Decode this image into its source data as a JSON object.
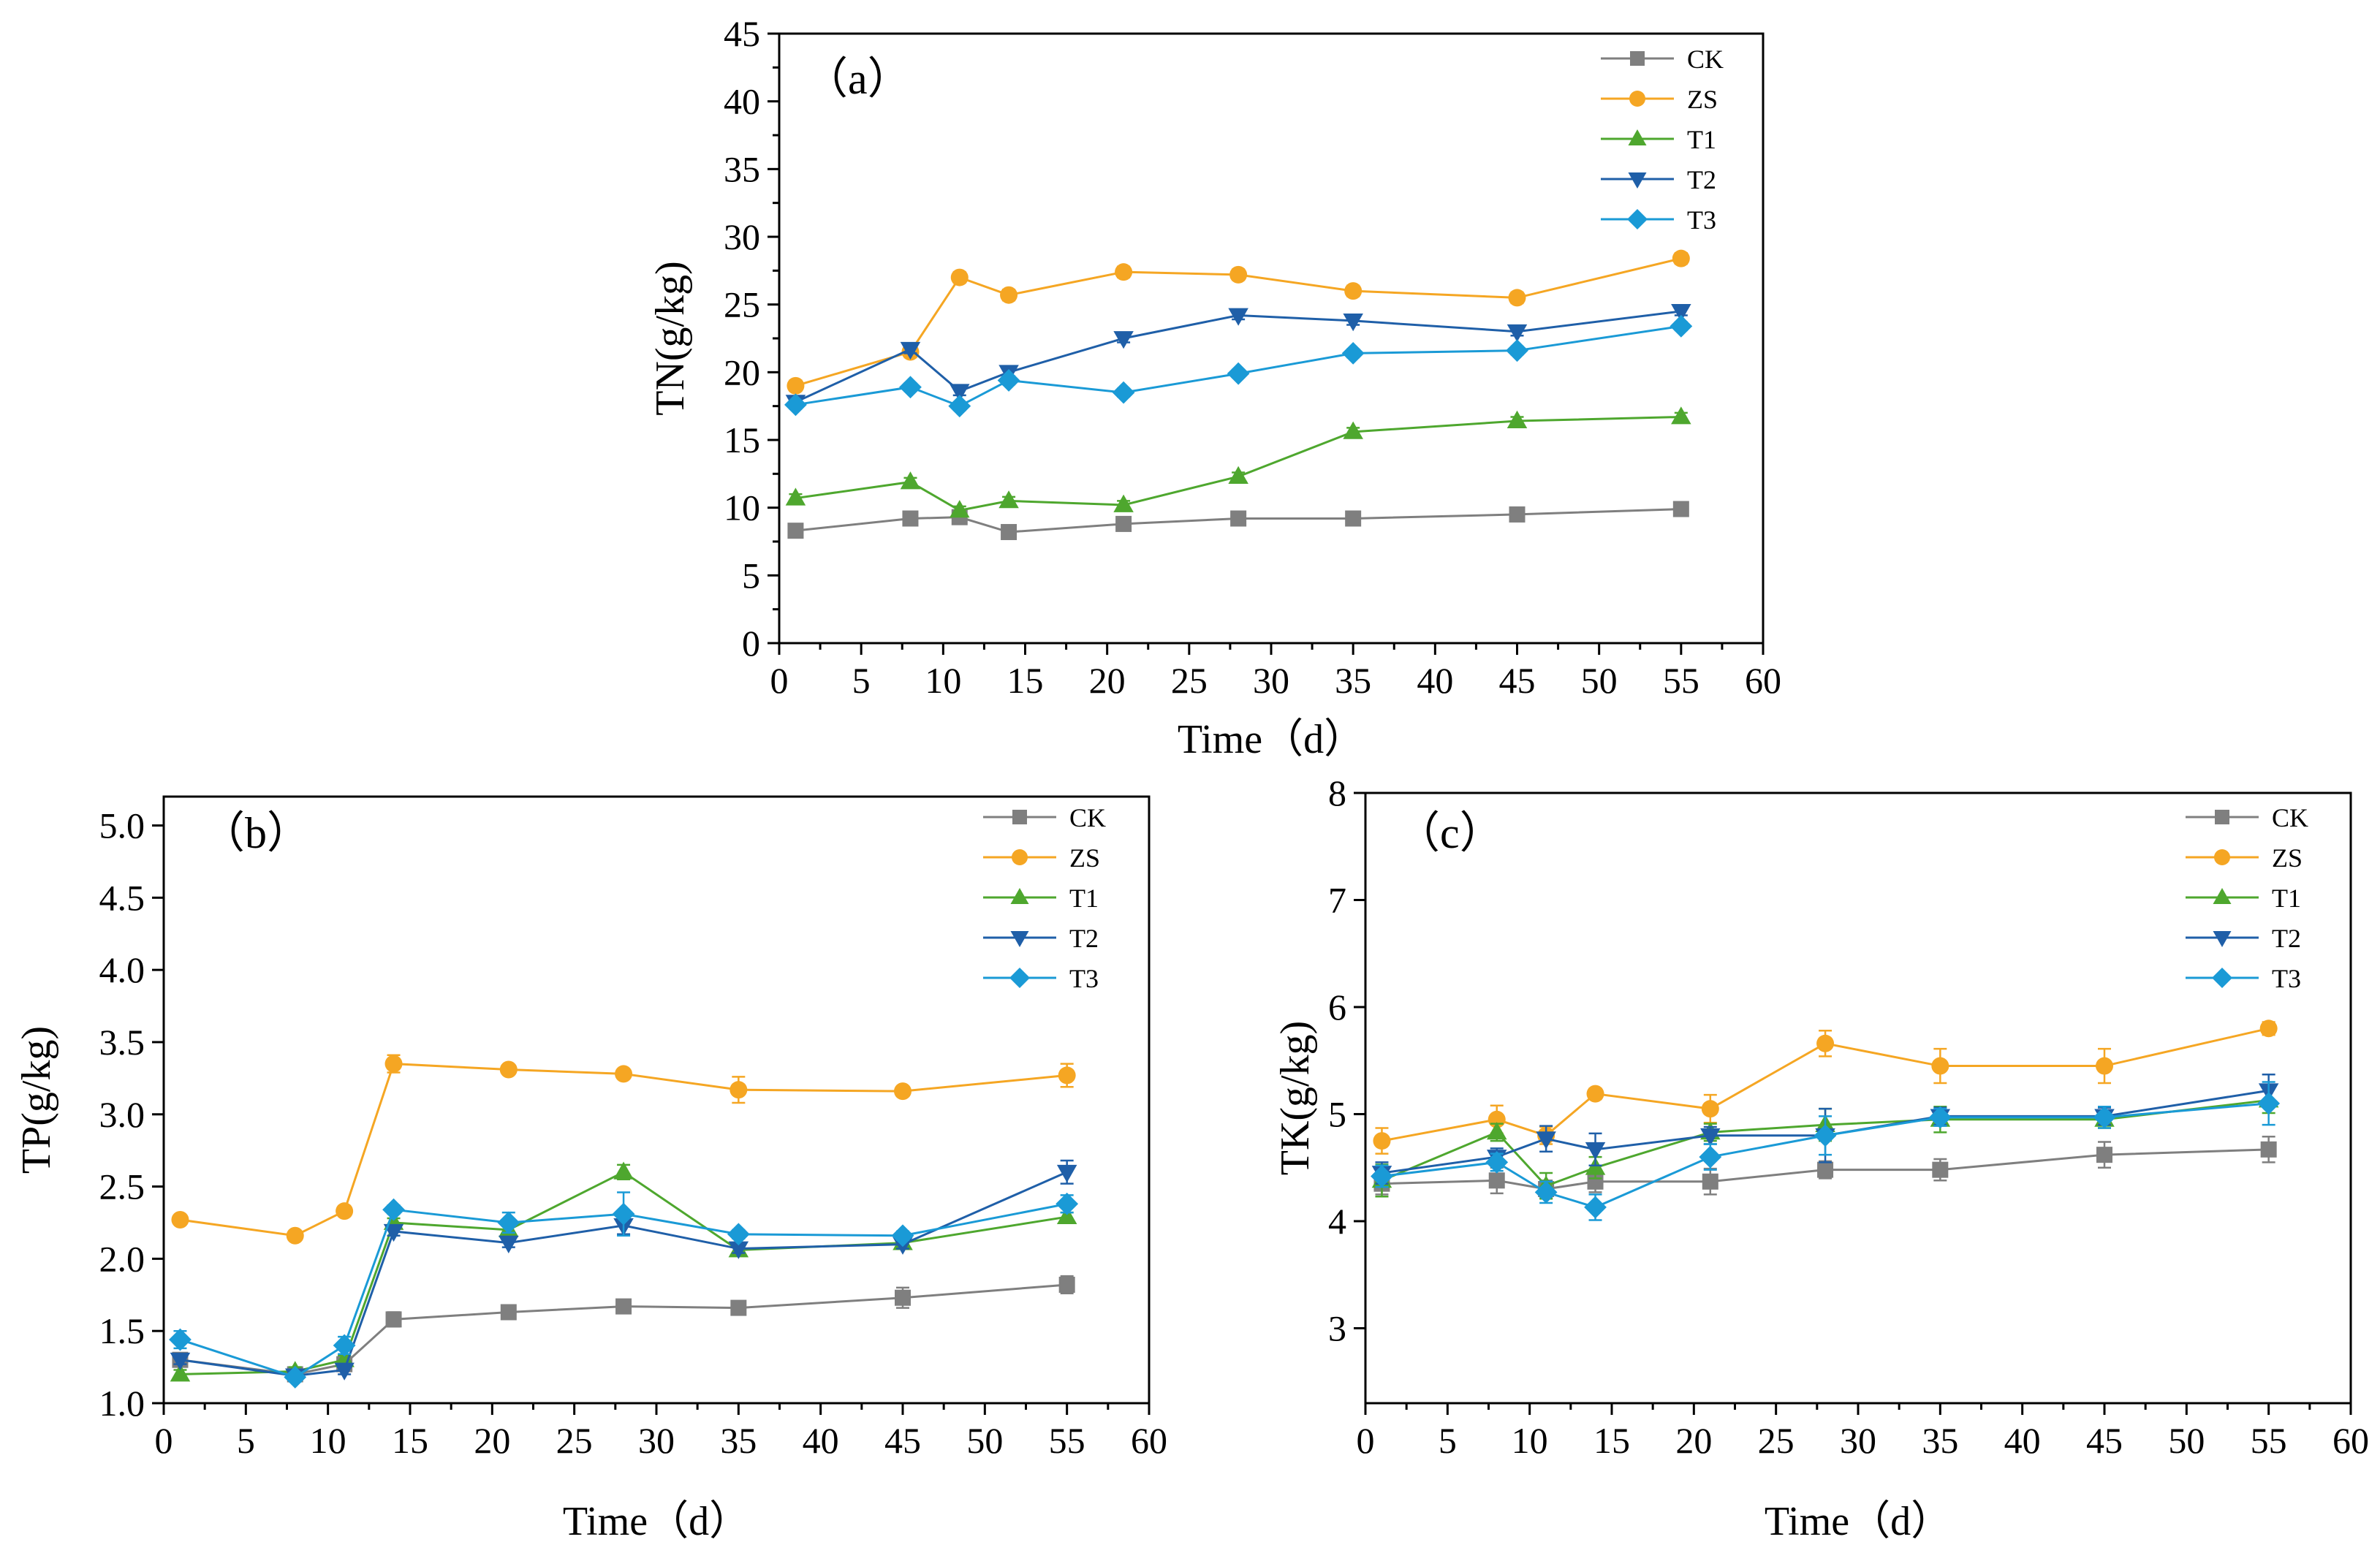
{
  "colors": {
    "CK": "#7f7f7f",
    "ZS": "#f5a623",
    "T1": "#4ea72e",
    "T2": "#1f5fa8",
    "T3": "#1a9ad6"
  },
  "chart_data": [
    {
      "type": "line",
      "panel_label": "（a）",
      "title": "",
      "xlabel": "Time（d）",
      "ylabel": "TN(g/kg)",
      "xlim": [
        0,
        60
      ],
      "ylim": [
        0,
        45
      ],
      "xticks": [
        0,
        5,
        10,
        15,
        20,
        25,
        30,
        35,
        40,
        45,
        50,
        55,
        60
      ],
      "yticks": [
        0,
        5,
        10,
        15,
        20,
        25,
        30,
        35,
        40,
        45
      ],
      "x": [
        1,
        8,
        11,
        14,
        21,
        28,
        35,
        45,
        55
      ],
      "legend_position": "top-right",
      "series": [
        {
          "name": "CK",
          "marker": "square",
          "values": [
            8.3,
            9.2,
            9.3,
            8.2,
            8.8,
            9.2,
            9.2,
            9.5,
            9.9
          ],
          "errors": [
            0.3,
            0.3,
            0.3,
            0.3,
            0.3,
            0.3,
            0.3,
            0.3,
            0.3
          ]
        },
        {
          "name": "ZS",
          "marker": "circle",
          "values": [
            19.0,
            21.5,
            27.0,
            25.7,
            27.4,
            27.2,
            26.0,
            25.5,
            28.4
          ],
          "errors": [
            0.4,
            0.4,
            0.4,
            0.4,
            0.4,
            0.4,
            0.4,
            0.4,
            0.4
          ]
        },
        {
          "name": "T1",
          "marker": "triangle-up",
          "values": [
            10.7,
            11.9,
            9.8,
            10.5,
            10.2,
            12.3,
            15.6,
            16.4,
            16.7
          ],
          "errors": [
            0.3,
            0.3,
            0.3,
            0.3,
            0.3,
            0.3,
            0.3,
            0.3,
            0.3
          ]
        },
        {
          "name": "T2",
          "marker": "triangle-down",
          "values": [
            17.8,
            21.7,
            18.6,
            20.0,
            22.5,
            24.2,
            23.8,
            23.0,
            24.5
          ],
          "errors": [
            0.3,
            0.3,
            0.3,
            0.3,
            0.3,
            0.3,
            0.3,
            0.3,
            0.3
          ]
        },
        {
          "name": "T3",
          "marker": "diamond",
          "values": [
            17.6,
            18.9,
            17.5,
            19.4,
            18.5,
            19.9,
            21.4,
            21.6,
            23.4
          ],
          "errors": [
            0.3,
            0.3,
            0.3,
            0.3,
            0.3,
            0.3,
            0.3,
            0.3,
            0.3
          ]
        }
      ]
    },
    {
      "type": "line",
      "panel_label": "（b）",
      "title": "",
      "xlabel": "Time（d）",
      "ylabel": "TP(g/kg)",
      "xlim": [
        0,
        60
      ],
      "ylim": [
        1.0,
        5.2
      ],
      "xticks": [
        0,
        5,
        10,
        15,
        20,
        25,
        30,
        35,
        40,
        45,
        50,
        55,
        60
      ],
      "yticks": [
        1.0,
        1.5,
        2.0,
        2.5,
        3.0,
        3.5,
        4.0,
        4.5,
        5.0
      ],
      "x": [
        1,
        8,
        11,
        14,
        21,
        28,
        35,
        45,
        55
      ],
      "legend_position": "top-right",
      "series": [
        {
          "name": "CK",
          "marker": "square",
          "values": [
            1.3,
            1.2,
            1.27,
            1.58,
            1.63,
            1.67,
            1.66,
            1.73,
            1.82
          ],
          "errors": [
            0.04,
            0.03,
            0.04,
            0.05,
            0.03,
            0.04,
            0.04,
            0.07,
            0.06
          ]
        },
        {
          "name": "ZS",
          "marker": "circle",
          "values": [
            2.27,
            2.16,
            2.33,
            3.35,
            3.31,
            3.28,
            3.17,
            3.16,
            3.27
          ],
          "errors": [
            0.03,
            0.03,
            0.03,
            0.06,
            0.03,
            0.03,
            0.09,
            0.03,
            0.08
          ]
        },
        {
          "name": "T1",
          "marker": "triangle-up",
          "values": [
            1.2,
            1.22,
            1.3,
            2.25,
            2.2,
            2.6,
            2.06,
            2.11,
            2.29
          ],
          "errors": [
            0.03,
            0.03,
            0.03,
            0.03,
            0.03,
            0.05,
            0.03,
            0.03,
            0.03
          ]
        },
        {
          "name": "T2",
          "marker": "triangle-down",
          "values": [
            1.3,
            1.19,
            1.23,
            2.19,
            2.11,
            2.23,
            2.07,
            2.1,
            2.6
          ],
          "errors": [
            0.03,
            0.03,
            0.03,
            0.03,
            0.03,
            0.06,
            0.03,
            0.03,
            0.08
          ]
        },
        {
          "name": "T3",
          "marker": "diamond",
          "values": [
            1.44,
            1.18,
            1.4,
            2.34,
            2.25,
            2.31,
            2.17,
            2.16,
            2.38
          ],
          "errors": [
            0.06,
            0.03,
            0.06,
            0.03,
            0.07,
            0.15,
            0.03,
            0.03,
            0.06
          ]
        }
      ]
    },
    {
      "type": "line",
      "panel_label": "（c）",
      "title": "",
      "xlabel": "Time（d）",
      "ylabel": "TK(g/kg)",
      "xlim": [
        0,
        60
      ],
      "ylim": [
        2.3,
        8.0
      ],
      "xticks": [
        0,
        5,
        10,
        15,
        20,
        25,
        30,
        35,
        40,
        45,
        50,
        55,
        60
      ],
      "yticks": [
        3,
        4,
        5,
        6,
        7,
        8
      ],
      "x": [
        1,
        8,
        11,
        14,
        21,
        28,
        35,
        45,
        55
      ],
      "legend_position": "top-right",
      "series": [
        {
          "name": "CK",
          "marker": "square",
          "values": [
            4.35,
            4.38,
            4.3,
            4.37,
            4.37,
            4.48,
            4.48,
            4.62,
            4.67
          ],
          "errors": [
            0.1,
            0.12,
            0.08,
            0.1,
            0.12,
            0.08,
            0.1,
            0.12,
            0.12
          ]
        },
        {
          "name": "ZS",
          "marker": "circle",
          "values": [
            4.75,
            4.95,
            4.8,
            5.19,
            5.05,
            5.66,
            5.45,
            5.45,
            5.8
          ],
          "errors": [
            0.12,
            0.13,
            0.08,
            0.05,
            0.13,
            0.12,
            0.16,
            0.16,
            0.06
          ]
        },
        {
          "name": "T1",
          "marker": "triangle-up",
          "values": [
            4.38,
            4.83,
            4.33,
            4.5,
            4.83,
            4.9,
            4.95,
            4.95,
            5.13
          ],
          "errors": [
            0.15,
            0.08,
            0.12,
            0.1,
            0.08,
            0.15,
            0.12,
            0.08,
            0.12
          ]
        },
        {
          "name": "T2",
          "marker": "triangle-down",
          "values": [
            4.45,
            4.6,
            4.77,
            4.67,
            4.8,
            4.8,
            4.98,
            4.98,
            5.22
          ],
          "errors": [
            0.1,
            0.08,
            0.12,
            0.15,
            0.08,
            0.25,
            0.08,
            0.08,
            0.15
          ]
        },
        {
          "name": "T3",
          "marker": "diamond",
          "values": [
            4.42,
            4.55,
            4.27,
            4.13,
            4.6,
            4.8,
            4.97,
            4.97,
            5.1
          ],
          "errors": [
            0.1,
            0.08,
            0.1,
            0.12,
            0.12,
            0.18,
            0.08,
            0.1,
            0.2
          ]
        }
      ]
    }
  ]
}
